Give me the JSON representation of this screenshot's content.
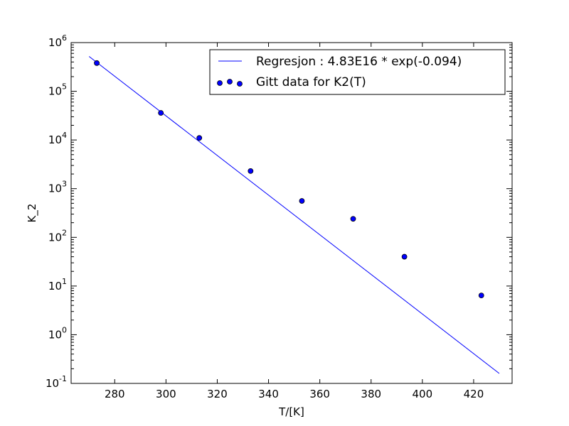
{
  "chart_data": {
    "type": "scatter",
    "xlabel": "T/[K]",
    "ylabel": "K_2",
    "xlim": [
      263,
      435
    ],
    "ylim_log10": [
      -1,
      6
    ],
    "y_scale": "log",
    "grid": false,
    "legend_position": "top-right",
    "x_ticks": [
      "280",
      "300",
      "320",
      "340",
      "360",
      "380",
      "400",
      "420"
    ],
    "y_ticks": [
      {
        "base": "10",
        "exp": "-1"
      },
      {
        "base": "10",
        "exp": "0"
      },
      {
        "base": "10",
        "exp": "1"
      },
      {
        "base": "10",
        "exp": "2"
      },
      {
        "base": "10",
        "exp": "3"
      },
      {
        "base": "10",
        "exp": "4"
      },
      {
        "base": "10",
        "exp": "5"
      },
      {
        "base": "10",
        "exp": "6"
      }
    ],
    "series": [
      {
        "name": "Regresjon : 4.83E16 * exp(-0.094)",
        "kind": "line",
        "color": "#0000ff",
        "x": [
          270,
          430
        ],
        "y": [
          520000,
          0.16
        ]
      },
      {
        "name": "Gitt data for K2(T)",
        "kind": "scatter",
        "color": "#0000ff",
        "x": [
          273,
          298,
          313,
          333,
          353,
          373,
          393,
          423
        ],
        "y": [
          380000,
          36000,
          11000,
          2300,
          560,
          240,
          40,
          6.4
        ]
      }
    ]
  }
}
